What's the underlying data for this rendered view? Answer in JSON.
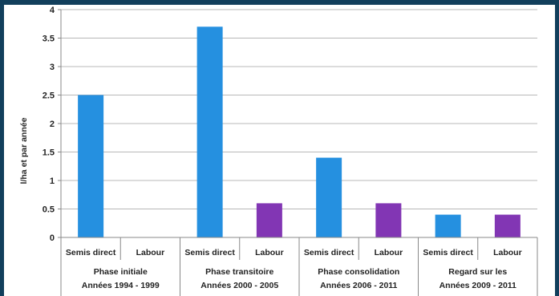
{
  "chart_data": {
    "type": "bar",
    "ylabel": "l/ha et par année",
    "ylim": [
      0,
      4
    ],
    "yticks": [
      "0",
      "0.5",
      "1",
      "1.5",
      "2",
      "2.5",
      "3",
      "3.5",
      "4"
    ],
    "grid": true,
    "groups": [
      {
        "label_line1": "Phase initiale",
        "label_line2": "Années 1994 - 1999"
      },
      {
        "label_line1": "Phase transitoire",
        "label_line2": "Années 2000 - 2005"
      },
      {
        "label_line1": "Phase consolidation",
        "label_line2": "Années 2006 - 2011"
      },
      {
        "label_line1": "Regard sur les",
        "label_line2": "Années 2009 - 2011"
      }
    ],
    "categories": [
      "Semis direct",
      "Labour",
      "Semis direct",
      "Labour",
      "Semis direct",
      "Labour",
      "Semis direct",
      "Labour"
    ],
    "values": [
      2.5,
      0,
      3.7,
      0.6,
      1.4,
      0.6,
      0.4,
      0.4
    ],
    "colors": [
      "#2590e0",
      "#8236b4",
      "#2590e0",
      "#8236b4",
      "#2590e0",
      "#8236b4",
      "#2590e0",
      "#8236b4"
    ]
  }
}
